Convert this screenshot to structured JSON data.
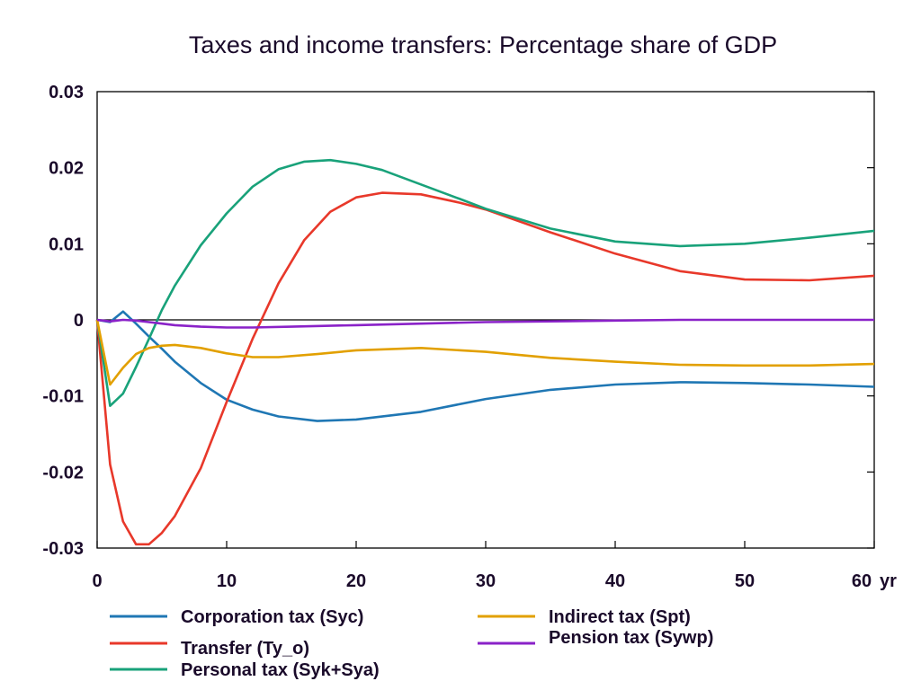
{
  "chart_data": {
    "type": "line",
    "title": "Taxes and income transfers: Percentage share of GDP",
    "xlabel": "",
    "ylabel": "",
    "x_unit_label": "yr",
    "xlim": [
      0,
      60
    ],
    "ylim": [
      -0.03,
      0.03
    ],
    "x_ticks": [
      "0",
      "10",
      "20",
      "30",
      "40",
      "50",
      "60"
    ],
    "y_ticks": [
      "0.03",
      "0.02",
      "0.01",
      "0",
      "-0.01",
      "-0.02",
      "-0.03"
    ],
    "grid": false,
    "zero_line": true,
    "legend_placement": "bottom",
    "series": [
      {
        "name": "Corporation tax (Syc)",
        "color": "#1f77b4",
        "x": [
          0,
          1,
          2,
          3,
          4,
          5,
          6,
          8,
          10,
          12,
          14,
          17,
          20,
          25,
          30,
          35,
          40,
          45,
          50,
          55,
          60
        ],
        "y": [
          0,
          -0.0003,
          0.0011,
          -0.0005,
          -0.0022,
          -0.0038,
          -0.0055,
          -0.0083,
          -0.0105,
          -0.0118,
          -0.0127,
          -0.0133,
          -0.0131,
          -0.0121,
          -0.0104,
          -0.0092,
          -0.0085,
          -0.0082,
          -0.0083,
          -0.0085,
          -0.0088
        ]
      },
      {
        "name": "Transfer (Ty_o)",
        "color": "#e8382a",
        "x": [
          0,
          1,
          2,
          3,
          4,
          5,
          6,
          8,
          10,
          12,
          14,
          16,
          18,
          20,
          22,
          25,
          28,
          30,
          35,
          40,
          45,
          50,
          55,
          60
        ],
        "y": [
          0,
          -0.019,
          -0.0265,
          -0.0295,
          -0.0295,
          -0.028,
          -0.0258,
          -0.0195,
          -0.0108,
          -0.0025,
          0.0048,
          0.0105,
          0.0142,
          0.0161,
          0.0167,
          0.0165,
          0.0154,
          0.0145,
          0.0115,
          0.0087,
          0.0064,
          0.0053,
          0.0052,
          0.0058
        ]
      },
      {
        "name": "Personal tax (Syk+Sya)",
        "color": "#19a27a",
        "x": [
          0,
          1,
          2,
          3,
          4,
          5,
          6,
          8,
          10,
          12,
          14,
          16,
          18,
          20,
          22,
          25,
          28,
          30,
          35,
          40,
          45,
          50,
          55,
          60
        ],
        "y": [
          0,
          -0.0113,
          -0.0097,
          -0.0062,
          -0.0025,
          0.0013,
          0.0045,
          0.0098,
          0.014,
          0.0175,
          0.0198,
          0.0208,
          0.021,
          0.0205,
          0.0197,
          0.0178,
          0.0159,
          0.0146,
          0.012,
          0.0103,
          0.0097,
          0.01,
          0.0108,
          0.0117
        ]
      },
      {
        "name": "Indirect tax (Spt)",
        "color": "#e2a000",
        "x": [
          0,
          1,
          2,
          3,
          4,
          5,
          6,
          8,
          10,
          12,
          14,
          17,
          20,
          25,
          30,
          35,
          40,
          45,
          50,
          55,
          60
        ],
        "y": [
          0,
          -0.0085,
          -0.0063,
          -0.0045,
          -0.0037,
          -0.0034,
          -0.0033,
          -0.0037,
          -0.0044,
          -0.0049,
          -0.0049,
          -0.0045,
          -0.004,
          -0.0037,
          -0.0042,
          -0.005,
          -0.0055,
          -0.0059,
          -0.006,
          -0.006,
          -0.0058
        ]
      },
      {
        "name": "Pension tax (Sywp)",
        "color": "#8a22c8",
        "x": [
          0,
          1,
          2,
          3,
          4,
          5,
          6,
          8,
          10,
          12,
          15,
          20,
          25,
          30,
          35,
          40,
          45,
          50,
          55,
          60
        ],
        "y": [
          0,
          -0.0002,
          0.0,
          -0.0001,
          -0.0003,
          -0.0005,
          -0.0007,
          -0.0009,
          -0.001,
          -0.001,
          -0.0009,
          -0.0007,
          -0.0005,
          -0.0003,
          -0.0002,
          -0.0001,
          0.0,
          0.0,
          0.0,
          0.0
        ]
      }
    ]
  }
}
